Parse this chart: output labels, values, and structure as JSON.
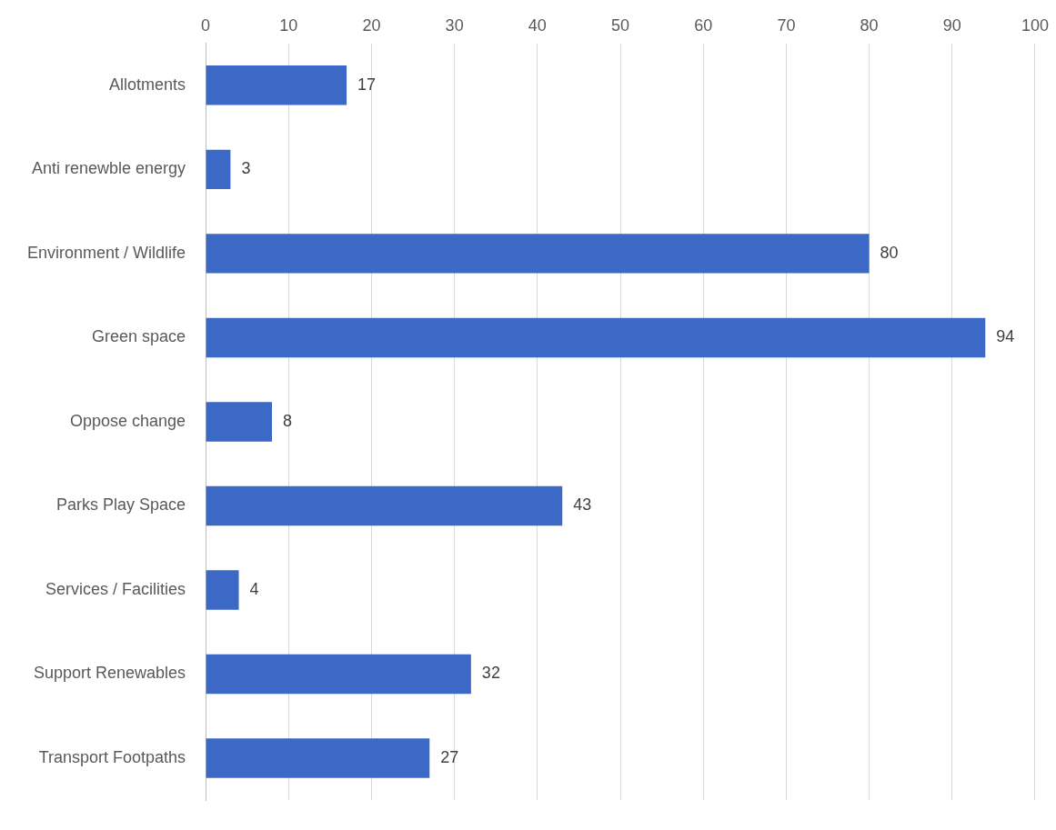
{
  "chart_data": {
    "type": "bar",
    "orientation": "horizontal",
    "categories": [
      "Allotments",
      "Anti renewble energy",
      "Environment / Wildlife",
      "Green space",
      "Oppose change",
      "Parks Play Space",
      "Services / Facilities",
      "Support Renewables",
      "Transport Footpaths"
    ],
    "values": [
      17,
      3,
      80,
      94,
      8,
      43,
      4,
      32,
      27
    ],
    "color": "#3d69c6",
    "xlim": [
      0,
      100
    ],
    "xticks": [
      0,
      10,
      20,
      30,
      40,
      50,
      60,
      70,
      80,
      90,
      100
    ],
    "grid": "x",
    "data_labels": true,
    "legend": false
  }
}
